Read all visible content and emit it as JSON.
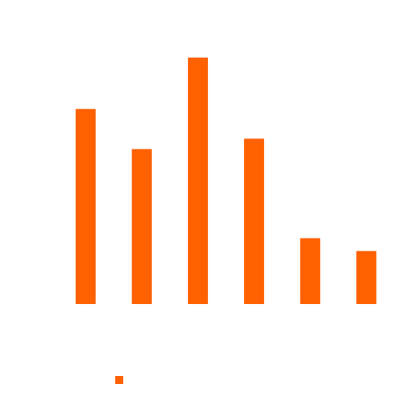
{
  "chart_data": {
    "type": "bar",
    "categories": [
      "",
      "",
      "",
      "",
      "",
      ""
    ],
    "series": [
      {
        "name": "",
        "color": "#ff6000",
        "values": [
          243,
          193,
          307,
          206,
          82,
          66
        ]
      }
    ],
    "title": "",
    "xlabel": "",
    "ylabel": "",
    "ylim": [
      0,
      307
    ],
    "grid": false,
    "legend": "bottom-center"
  }
}
